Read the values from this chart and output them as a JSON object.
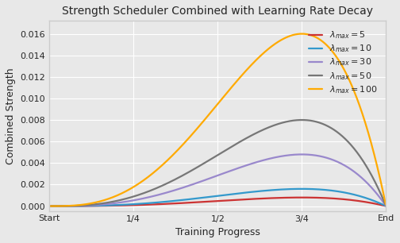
{
  "title": "Strength Scheduler Combined with Learning Rate Decay",
  "xlabel": "Training Progress",
  "ylabel": "Combined Strength",
  "xtick_positions": [
    0.0,
    0.25,
    0.5,
    0.75,
    1.0
  ],
  "xtick_labels": [
    "Start",
    "1/4",
    "1/2",
    "3/4",
    "End"
  ],
  "ytick_positions": [
    0.0,
    0.002,
    0.004,
    0.006,
    0.008,
    0.01,
    0.012,
    0.014,
    0.016
  ],
  "ylim": [
    -0.00045,
    0.0172
  ],
  "xlim": [
    0.0,
    1.0
  ],
  "plot_bg_color": "#e8e8e8",
  "fig_bg_color": "#e8e8e8",
  "grid_color": "white",
  "series": [
    {
      "lambda_max": 5,
      "color": "#cc3333",
      "label": "$\\lambda_{max} = 5$"
    },
    {
      "lambda_max": 10,
      "color": "#3399cc",
      "label": "$\\lambda_{max} = 10$"
    },
    {
      "lambda_max": 30,
      "color": "#9988cc",
      "label": "$\\lambda_{max} = 30$"
    },
    {
      "lambda_max": 50,
      "color": "#777777",
      "label": "$\\lambda_{max} = 50$"
    },
    {
      "lambda_max": 100,
      "color": "#ffaa00",
      "label": "$\\lambda_{max} = 100$"
    }
  ],
  "peak_scale": 0.016,
  "figsize": [
    5.04,
    3.06
  ],
  "dpi": 100,
  "title_fontsize": 10,
  "axis_label_fontsize": 9,
  "tick_fontsize": 8,
  "legend_fontsize": 8,
  "linewidth": 1.6
}
